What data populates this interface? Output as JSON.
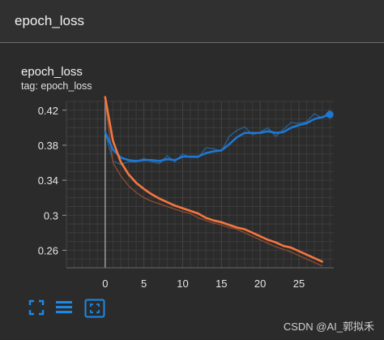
{
  "header": {
    "title": "epoch_loss"
  },
  "card": {
    "title": "epoch_loss",
    "tag": "tag: epoch_loss"
  },
  "toolbar": {
    "buttons": [
      {
        "icon": "fullscreen-icon"
      },
      {
        "icon": "data-table-icon"
      },
      {
        "icon": "fit-domain-icon"
      }
    ],
    "accent": "#1e88e5"
  },
  "watermark": "CSDN @AI_郭拟禾",
  "chart_data": {
    "type": "line",
    "title": "",
    "xlabel": "",
    "ylabel": "",
    "xlim": [
      -5,
      29.5
    ],
    "ylim": [
      0.24,
      0.43
    ],
    "xticks": [
      0,
      5,
      10,
      15,
      20,
      25
    ],
    "yticks": [
      0.26,
      0.3,
      0.34,
      0.38,
      0.42
    ],
    "ytick_labels": [
      "0.26",
      "0.3",
      "0.34",
      "0.38",
      "0.42"
    ],
    "grid": true,
    "legend": "none",
    "series": [
      {
        "color": "#1f77d4",
        "raw_color": "#2a5f8a",
        "x": [
          0,
          1,
          2,
          3,
          4,
          5,
          6,
          7,
          8,
          9,
          10,
          11,
          12,
          13,
          14,
          15,
          16,
          17,
          18,
          19,
          20,
          21,
          22,
          23,
          24,
          25,
          26,
          27,
          28,
          29
        ],
        "values": [
          0.395,
          0.375,
          0.366,
          0.363,
          0.362,
          0.363,
          0.363,
          0.362,
          0.364,
          0.363,
          0.367,
          0.367,
          0.367,
          0.371,
          0.373,
          0.374,
          0.381,
          0.389,
          0.394,
          0.394,
          0.394,
          0.396,
          0.394,
          0.395,
          0.4,
          0.403,
          0.405,
          0.41,
          0.412,
          0.415
        ],
        "raw_values": [
          0.395,
          0.362,
          0.358,
          0.361,
          0.361,
          0.365,
          0.361,
          0.359,
          0.368,
          0.361,
          0.37,
          0.366,
          0.366,
          0.377,
          0.376,
          0.373,
          0.39,
          0.397,
          0.401,
          0.392,
          0.395,
          0.4,
          0.39,
          0.398,
          0.406,
          0.405,
          0.407,
          0.416,
          0.411,
          0.42
        ],
        "end_marker": true
      },
      {
        "color": "#f5773f",
        "raw_color": "#8a4a33",
        "x": [
          0,
          1,
          2,
          3,
          4,
          5,
          6,
          7,
          8,
          9,
          10,
          11,
          12,
          13,
          14,
          15,
          16,
          17,
          18,
          19,
          20,
          21,
          22,
          23,
          24,
          25,
          26,
          27,
          28
        ],
        "values": [
          0.435,
          0.385,
          0.361,
          0.347,
          0.337,
          0.33,
          0.324,
          0.319,
          0.315,
          0.311,
          0.308,
          0.305,
          0.302,
          0.297,
          0.294,
          0.292,
          0.289,
          0.286,
          0.284,
          0.28,
          0.276,
          0.272,
          0.269,
          0.265,
          0.263,
          0.259,
          0.255,
          0.251,
          0.247
        ],
        "raw_values": [
          0.432,
          0.36,
          0.345,
          0.334,
          0.326,
          0.32,
          0.316,
          0.313,
          0.31,
          0.307,
          0.304,
          0.302,
          0.297,
          0.294,
          0.291,
          0.289,
          0.286,
          0.284,
          0.28,
          0.276,
          0.272,
          0.268,
          0.264,
          0.261,
          0.258,
          0.254,
          0.25,
          0.246,
          0.242
        ]
      }
    ]
  }
}
